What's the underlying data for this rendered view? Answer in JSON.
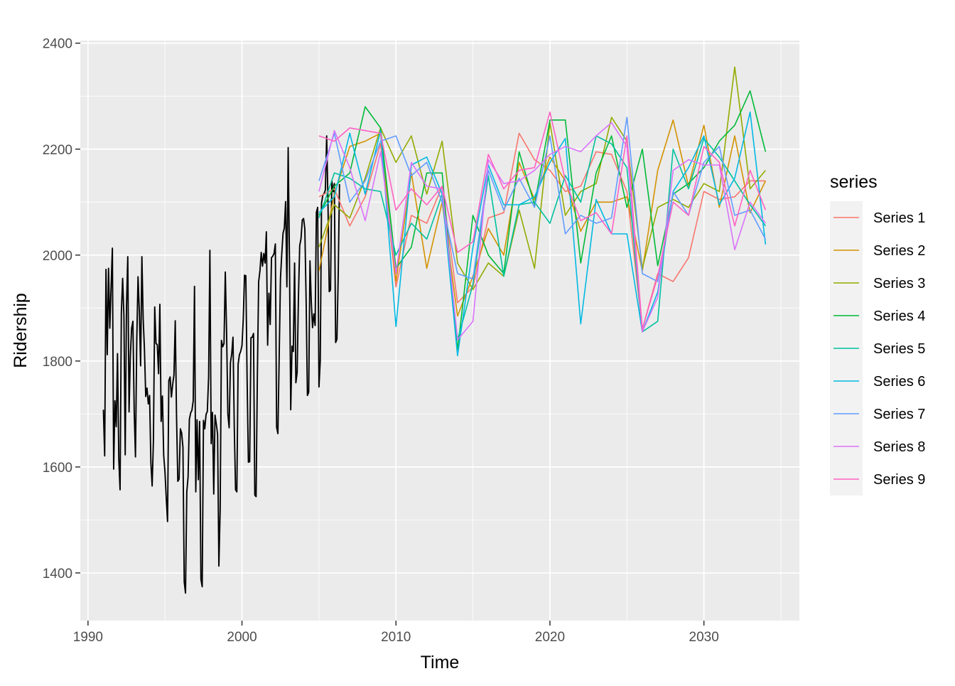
{
  "chart_data": {
    "type": "line",
    "xlabel": "Time",
    "ylabel": "Ridership",
    "xlim": [
      1989.5,
      2036.2
    ],
    "ylim": [
      1310,
      2405
    ],
    "x_ticks": [
      1990,
      2000,
      2010,
      2020,
      2030
    ],
    "y_ticks": [
      1400,
      1600,
      1800,
      2000,
      2200,
      2400
    ],
    "grid": true,
    "legend": {
      "title": "series",
      "position": "right"
    },
    "historical": {
      "color": "#000000",
      "x_start": 1991.0,
      "x_step": 0.0833333,
      "values": [
        1708,
        1621,
        1973,
        1812,
        1975,
        1862,
        1940,
        2013,
        1596,
        1725,
        1676,
        1814,
        1615,
        1557,
        1891,
        1956,
        1885,
        1623,
        1903,
        1997,
        1704,
        1810,
        1862,
        1875,
        1705,
        1619,
        1838,
        1959,
        1894,
        1791,
        1997,
        1880,
        1822,
        1733,
        1749,
        1719,
        1735,
        1609,
        1564,
        1651,
        1902,
        1833,
        1831,
        1776,
        1907,
        1686,
        1734,
        1622,
        1590,
        1540,
        1497,
        1763,
        1770,
        1732,
        1756,
        1774,
        1876,
        1696,
        1573,
        1577,
        1672,
        1664,
        1637,
        1383,
        1362,
        1553,
        1581,
        1690,
        1702,
        1707,
        1725,
        1941,
        1553,
        1689,
        1576,
        1686,
        1388,
        1374,
        1688,
        1672,
        1699,
        1705,
        1770,
        2009,
        1644,
        1703,
        1549,
        1698,
        1681,
        1662,
        1413,
        1520,
        1839,
        1827,
        1833,
        1968,
        1856,
        1700,
        1674,
        1797,
        1813,
        1845,
        1676,
        1557,
        1553,
        1794,
        1812,
        1818,
        1829,
        1880,
        1962,
        1961,
        1766,
        1609,
        1610,
        1844,
        1845,
        1852,
        1547,
        1544,
        1773,
        1950,
        1970,
        2005,
        1979,
        2003,
        1985,
        2044,
        1830,
        1928,
        1869,
        1995,
        1998,
        2003,
        2021,
        1675,
        1663,
        1809,
        1956,
        2002,
        2041,
        2051,
        2101,
        1940,
        2203,
        1993,
        1708,
        1828,
        1818,
        1985,
        1759,
        1778,
        1920,
        2018,
        2031,
        2066,
        2069,
        2049,
        1914,
        1735,
        1741,
        1989,
        1912,
        1863,
        1889,
        1867,
        2081,
        2090,
        1751,
        1800,
        2098,
        2113,
        2116,
        2123,
        2225,
        2102,
        1931,
        1934,
        2140,
        2120,
        2135,
        1835,
        1841,
        1962,
        2134
      ]
    },
    "forecast_x": [
      2005,
      2006,
      2007,
      2008,
      2009,
      2010,
      2011,
      2012,
      2013,
      2014,
      2015,
      2016,
      2017,
      2018,
      2019,
      2020,
      2021,
      2022,
      2023,
      2024,
      2025,
      2026,
      2027,
      2028,
      2029,
      2030,
      2031,
      2032,
      2033,
      2034
    ],
    "series": [
      {
        "name": "Series 1",
        "color": "#F8766D",
        "values": [
          2110,
          2125,
          2055,
          2110,
          2210,
          1940,
          2075,
          2060,
          2130,
          1910,
          1940,
          2070,
          2080,
          2230,
          2180,
          2160,
          2120,
          2130,
          2195,
          2190,
          2120,
          1860,
          1965,
          1950,
          1995,
          2120,
          2105,
          2110,
          2140,
          2140
        ]
      },
      {
        "name": "Series 2",
        "color": "#D39200",
        "values": [
          1970,
          2115,
          2205,
          2215,
          2230,
          1950,
          2155,
          1975,
          2100,
          1885,
          1960,
          2050,
          2000,
          2175,
          2105,
          2185,
          2140,
          2045,
          2100,
          2100,
          2110,
          1970,
          2160,
          2255,
          2130,
          2245,
          2090,
          2225,
          2080,
          2140
        ]
      },
      {
        "name": "Series 3",
        "color": "#93AA00",
        "values": [
          2015,
          2095,
          2070,
          2145,
          2240,
          2175,
          2225,
          2115,
          2215,
          1985,
          1935,
          1985,
          1960,
          2085,
          1975,
          2250,
          2075,
          2120,
          2135,
          2260,
          2215,
          1975,
          2090,
          2105,
          2090,
          2135,
          2120,
          2355,
          2125,
          2160
        ]
      },
      {
        "name": "Series 4",
        "color": "#00BA38",
        "values": [
          2075,
          2130,
          2155,
          2280,
          2240,
          1975,
          2015,
          2155,
          2155,
          1820,
          2075,
          2000,
          1965,
          2195,
          2095,
          2255,
          2255,
          1985,
          2155,
          2225,
          2090,
          2200,
          1980,
          2115,
          2135,
          2165,
          2215,
          2245,
          2310,
          2195
        ]
      },
      {
        "name": "Series 5",
        "color": "#00C19F",
        "values": [
          2070,
          2155,
          2145,
          2125,
          2120,
          2000,
          2060,
          2030,
          2115,
          1840,
          1945,
          2150,
          1960,
          2095,
          2100,
          2060,
          2150,
          2100,
          2225,
          2210,
          2165,
          1855,
          1875,
          2200,
          2125,
          2220,
          2185,
          2140,
          2095,
          2055
        ]
      },
      {
        "name": "Series 6",
        "color": "#00B9E3",
        "values": [
          2080,
          2110,
          2230,
          2115,
          2235,
          1865,
          2170,
          2185,
          2115,
          1810,
          2015,
          2170,
          2095,
          2095,
          2110,
          2175,
          2220,
          1870,
          2105,
          2040,
          2040,
          1855,
          1930,
          2120,
          2165,
          2225,
          2095,
          2145,
          2270,
          2020
        ]
      },
      {
        "name": "Series 7",
        "color": "#619CFF",
        "values": [
          2140,
          2230,
          2100,
          2140,
          2215,
          2225,
          2150,
          2175,
          2100,
          1965,
          1955,
          2160,
          2085,
          2145,
          2090,
          2225,
          2040,
          2075,
          2060,
          2070,
          2260,
          1965,
          1950,
          2120,
          2075,
          2175,
          2205,
          2075,
          2085,
          2030
        ]
      },
      {
        "name": "Series 8",
        "color": "#DB72FB",
        "values": [
          2120,
          2235,
          2165,
          2065,
          2195,
          1965,
          2175,
          2130,
          2125,
          1840,
          1875,
          2180,
          2135,
          2140,
          2160,
          2190,
          2205,
          2195,
          2225,
          2250,
          2205,
          1855,
          1920,
          2160,
          2180,
          2170,
          2170,
          2010,
          2100,
          2060
        ]
      },
      {
        "name": "Series 9",
        "color": "#FF61C3",
        "values": [
          2225,
          2215,
          2240,
          2235,
          2230,
          2085,
          2125,
          2095,
          2130,
          2005,
          2025,
          2190,
          2125,
          2160,
          2165,
          2270,
          2140,
          2065,
          2080,
          2040,
          2225,
          1860,
          1960,
          2100,
          2075,
          2205,
          2175,
          2055,
          2160,
          2085
        ]
      }
    ]
  }
}
